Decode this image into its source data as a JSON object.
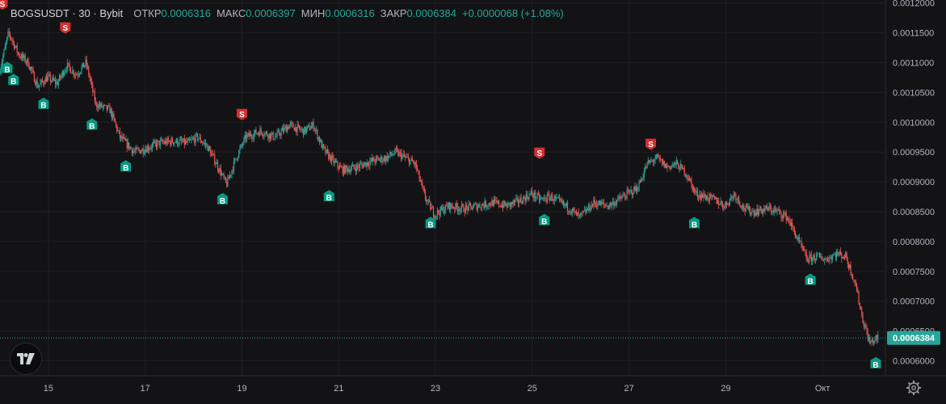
{
  "header": {
    "symbol": "BOGSUSDT",
    "interval": "30",
    "exchange": "Bybit",
    "open_label": "ОТКР",
    "open": "0.0006316",
    "high_label": "МАКС",
    "high": "0.0006397",
    "low_label": "МИН",
    "low": "0.0006316",
    "close_label": "ЗАКР",
    "close": "0.0006384",
    "change": "+0.0000068 (+1.08%)"
  },
  "colors": {
    "background": "#131316",
    "up": "#26a69a",
    "down": "#ef5350",
    "buy_marker": "#089981",
    "sell_marker": "#d32f2f",
    "price_badge": "#26a69a"
  },
  "icons": {
    "logo": "tradingview-logo-icon",
    "settings": "gear-icon"
  },
  "chart_data": {
    "type": "candlestick",
    "y_ticks": [
      "0.0012000",
      "0.0011500",
      "0.0011000",
      "0.0010500",
      "0.0010000",
      "0.0009500",
      "0.0009000",
      "0.0008500",
      "0.0008000",
      "0.0007500",
      "0.0007000",
      "0.0006500",
      "0.0006000"
    ],
    "y_tick_values": [
      0.0012,
      0.00115,
      0.0011,
      0.00105,
      0.001,
      0.00095,
      0.0009,
      0.00085,
      0.0008,
      0.00075,
      0.0007,
      0.00065,
      0.0006
    ],
    "ylim": [
      0.000575,
      0.001205
    ],
    "x_ticks": [
      {
        "label": "15",
        "day": 15
      },
      {
        "label": "17",
        "day": 17
      },
      {
        "label": "19",
        "day": 19
      },
      {
        "label": "21",
        "day": 21
      },
      {
        "label": "23",
        "day": 23
      },
      {
        "label": "25",
        "day": 25
      },
      {
        "label": "27",
        "day": 27
      },
      {
        "label": "29",
        "day": 29
      },
      {
        "label": "Окт",
        "day": 31
      }
    ],
    "xlim": [
      14,
      32.3
    ],
    "last_price": "0.0006384",
    "last_price_value": 0.0006384,
    "price_path": [
      [
        14.0,
        0.001082
      ],
      [
        14.2,
        0.00115
      ],
      [
        14.4,
        0.001115
      ],
      [
        14.6,
        0.0011
      ],
      [
        14.8,
        0.00106
      ],
      [
        15.0,
        0.001075
      ],
      [
        15.2,
        0.001065
      ],
      [
        15.4,
        0.001095
      ],
      [
        15.6,
        0.00108
      ],
      [
        15.8,
        0.0011
      ],
      [
        16.0,
        0.00103
      ],
      [
        16.3,
        0.00102
      ],
      [
        16.5,
        0.000975
      ],
      [
        16.8,
        0.00095
      ],
      [
        17.0,
        0.000955
      ],
      [
        17.3,
        0.000965
      ],
      [
        17.6,
        0.000968
      ],
      [
        17.9,
        0.000965
      ],
      [
        18.1,
        0.000975
      ],
      [
        18.3,
        0.00096
      ],
      [
        18.5,
        0.00093
      ],
      [
        18.7,
        0.000895
      ],
      [
        18.9,
        0.00094
      ],
      [
        19.1,
        0.000975
      ],
      [
        19.4,
        0.000985
      ],
      [
        19.7,
        0.000975
      ],
      [
        20.0,
        0.000995
      ],
      [
        20.3,
        0.000985
      ],
      [
        20.5,
        0.000995
      ],
      [
        20.7,
        0.000955
      ],
      [
        20.9,
        0.000935
      ],
      [
        21.1,
        0.00092
      ],
      [
        21.4,
        0.000925
      ],
      [
        21.7,
        0.000935
      ],
      [
        22.0,
        0.00094
      ],
      [
        22.2,
        0.00095
      ],
      [
        22.4,
        0.00094
      ],
      [
        22.6,
        0.00093
      ],
      [
        22.8,
        0.000875
      ],
      [
        23.0,
        0.000845
      ],
      [
        23.3,
        0.00086
      ],
      [
        23.6,
        0.000855
      ],
      [
        23.9,
        0.00086
      ],
      [
        24.2,
        0.000865
      ],
      [
        24.5,
        0.00086
      ],
      [
        24.8,
        0.00087
      ],
      [
        25.0,
        0.00088
      ],
      [
        25.2,
        0.00087
      ],
      [
        25.4,
        0.000875
      ],
      [
        25.6,
        0.000865
      ],
      [
        25.8,
        0.000855
      ],
      [
        26.0,
        0.00084
      ],
      [
        26.3,
        0.000865
      ],
      [
        26.6,
        0.00086
      ],
      [
        26.9,
        0.000875
      ],
      [
        27.2,
        0.00089
      ],
      [
        27.4,
        0.00093
      ],
      [
        27.6,
        0.00094
      ],
      [
        27.8,
        0.000925
      ],
      [
        28.0,
        0.00093
      ],
      [
        28.2,
        0.000915
      ],
      [
        28.4,
        0.00088
      ],
      [
        28.6,
        0.000875
      ],
      [
        28.8,
        0.00087
      ],
      [
        29.0,
        0.00086
      ],
      [
        29.2,
        0.00088
      ],
      [
        29.4,
        0.000855
      ],
      [
        29.6,
        0.00085
      ],
      [
        29.9,
        0.000855
      ],
      [
        30.1,
        0.00085
      ],
      [
        30.3,
        0.00084
      ],
      [
        30.5,
        0.000805
      ],
      [
        30.7,
        0.00077
      ],
      [
        30.9,
        0.000775
      ],
      [
        31.1,
        0.00077
      ],
      [
        31.3,
        0.00078
      ],
      [
        31.5,
        0.000775
      ],
      [
        31.7,
        0.00073
      ],
      [
        31.85,
        0.00067
      ],
      [
        32.0,
        0.00063
      ],
      [
        32.15,
        0.000638
      ]
    ],
    "markers": [
      {
        "type": "S",
        "day": 14.05,
        "price": 0.001175
      },
      {
        "type": "S",
        "day": 15.35,
        "price": 0.001135
      },
      {
        "type": "S",
        "day": 19.0,
        "price": 0.00099
      },
      {
        "type": "S",
        "day": 25.15,
        "price": 0.000925
      },
      {
        "type": "S",
        "day": 27.45,
        "price": 0.00094
      },
      {
        "type": "B",
        "day": 14.15,
        "price": 0.001115
      },
      {
        "type": "B",
        "day": 14.28,
        "price": 0.001095
      },
      {
        "type": "B",
        "day": 14.9,
        "price": 0.001055
      },
      {
        "type": "B",
        "day": 15.9,
        "price": 0.00102
      },
      {
        "type": "B",
        "day": 16.6,
        "price": 0.00095
      },
      {
        "type": "B",
        "day": 18.6,
        "price": 0.000895
      },
      {
        "type": "B",
        "day": 20.8,
        "price": 0.0009
      },
      {
        "type": "B",
        "day": 22.9,
        "price": 0.000855
      },
      {
        "type": "B",
        "day": 25.25,
        "price": 0.00086
      },
      {
        "type": "B",
        "day": 28.35,
        "price": 0.000855
      },
      {
        "type": "B",
        "day": 30.75,
        "price": 0.00076
      },
      {
        "type": "B",
        "day": 32.1,
        "price": 0.00062
      }
    ]
  }
}
